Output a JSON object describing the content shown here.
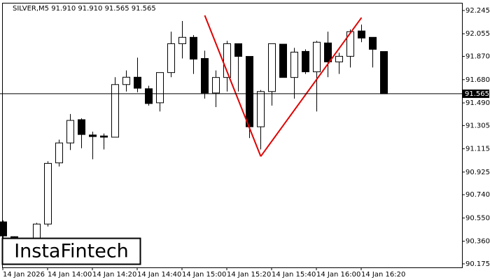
{
  "chart_data": {
    "type": "candlestick",
    "title": "SILVER,M5  91.910 91.910 91.565 91.565",
    "watermark": "InstaFintech",
    "categories": [
      "14 Jan 2026",
      null,
      null,
      null,
      "14 Jan 14:00",
      null,
      null,
      null,
      "14 Jan 14:20",
      null,
      null,
      null,
      "14 Jan 14:40",
      null,
      null,
      null,
      "14 Jan 15:00",
      null,
      null,
      null,
      "14 Jan 15:20",
      null,
      null,
      null,
      "14 Jan 15:40",
      null,
      null,
      null,
      "14 Jan 16:00",
      null,
      null,
      null,
      "14 Jan 16:20",
      null,
      null
    ],
    "open": [
      90.518,
      90.397,
      90.36,
      90.345,
      90.5,
      91.0,
      91.163,
      91.353,
      91.228,
      91.22,
      91.21,
      91.64,
      91.7,
      91.606,
      91.491,
      91.738,
      91.974,
      92.026,
      91.853,
      91.571,
      91.698,
      91.974,
      91.87,
      91.295,
      91.583,
      91.97,
      91.698,
      91.911,
      91.744,
      91.98,
      91.825,
      91.871,
      92.078,
      92.026,
      91.91
    ],
    "high": [
      90.53,
      90.4,
      90.38,
      90.51,
      91.013,
      91.19,
      91.399,
      91.364,
      91.255,
      91.24,
      91.7,
      91.755,
      91.86,
      91.63,
      91.738,
      92.072,
      92.159,
      92.044,
      91.917,
      91.755,
      91.997,
      91.974,
      91.87,
      91.595,
      91.974,
      91.97,
      91.94,
      91.928,
      91.997,
      92.072,
      91.9,
      92.09,
      92.13,
      92.026,
      91.91
    ],
    "low": [
      90.374,
      90.345,
      90.3,
      90.33,
      90.48,
      90.97,
      91.105,
      91.12,
      91.03,
      91.11,
      91.21,
      91.583,
      91.577,
      91.468,
      91.42,
      91.7,
      91.853,
      91.727,
      91.525,
      91.456,
      91.583,
      91.583,
      91.203,
      91.11,
      91.468,
      91.698,
      91.525,
      91.727,
      91.42,
      91.7,
      91.727,
      91.78,
      91.986,
      91.78,
      91.565
    ],
    "close": [
      90.403,
      90.362,
      90.34,
      90.5,
      90.996,
      91.163,
      91.347,
      91.232,
      91.215,
      91.21,
      91.64,
      91.7,
      91.61,
      91.485,
      91.738,
      91.974,
      92.026,
      91.848,
      91.571,
      91.698,
      91.974,
      91.87,
      91.295,
      91.583,
      91.974,
      91.698,
      91.905,
      91.744,
      91.986,
      91.825,
      91.871,
      92.072,
      92.02,
      91.928,
      91.565
    ],
    "up_color": "#ffffff",
    "down_color": "#000000",
    "ylim": [
      90.146,
      92.308
    ],
    "yticks": [
      92.245,
      92.055,
      {
        "value": 91.87,
        "label": "91.870"
      },
      {
        "value": 91.68,
        "label": "91.680"
      },
      {
        "value": 91.49,
        "label": "91.490"
      },
      91.305,
      91.115,
      90.925,
      {
        "value": 90.74,
        "label": "90.740"
      },
      {
        "value": 90.55,
        "label": "90.550"
      },
      {
        "value": 90.36,
        "label": "90.360"
      },
      90.175
    ],
    "last_price": 91.565,
    "pattern": {
      "color": "#e00000",
      "points": [
        {
          "x": 18,
          "y": 92.205
        },
        {
          "x": 23,
          "y": 91.053
        },
        {
          "x": 32,
          "y": 92.187
        }
      ]
    }
  }
}
